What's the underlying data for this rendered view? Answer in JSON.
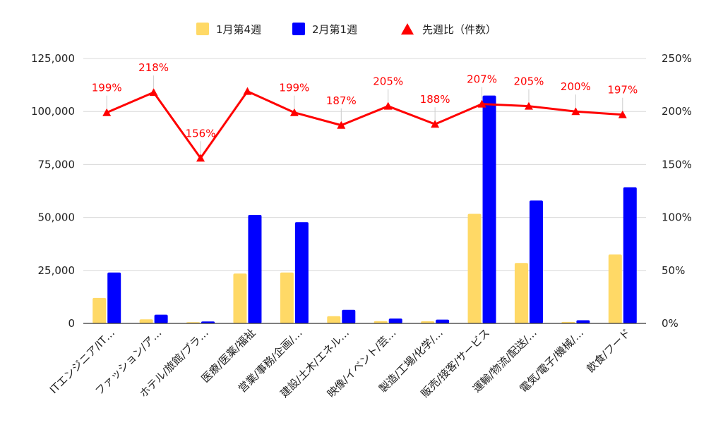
{
  "chart_data": {
    "type": "bar+line",
    "title": "",
    "legend": {
      "position": "top",
      "entries": [
        "1月第4週",
        "2月第1週",
        "先週比（件数）"
      ]
    },
    "categories": [
      "ITエンジニア/IT…",
      "ファッション/ア…",
      "ホテル/旅館/ブラ…",
      "医療/医薬/福祉",
      "営業/事務/企画/…",
      "建設/土木/エネル…",
      "映像/イベント/芸…",
      "製造/工場/化学/…",
      "販売/接客/サービス",
      "運輸/物流/配送/…",
      "電気/電子/機械/…",
      "飲食/フード"
    ],
    "series": [
      {
        "name": "1月第4週",
        "type": "bar",
        "axis": "left",
        "color": "#FFD966",
        "values": [
          12000,
          1900,
          600,
          23500,
          24000,
          3400,
          1100,
          1000,
          51700,
          28500,
          700,
          32500
        ]
      },
      {
        "name": "2月第1週",
        "type": "bar",
        "axis": "left",
        "color": "#0000FF",
        "values": [
          24000,
          4100,
          900,
          51200,
          47800,
          6400,
          2300,
          1800,
          107500,
          58000,
          1500,
          64200
        ]
      },
      {
        "name": "先週比（件数）",
        "type": "line",
        "axis": "right",
        "color": "#FF0000",
        "values": [
          199,
          218,
          156,
          219,
          199,
          187,
          205,
          188,
          207,
          205,
          200,
          197
        ],
        "labels": [
          "199%",
          "218%",
          "156%",
          "",
          "199%",
          "187%",
          "205%",
          "188%",
          "207%",
          "205%",
          "200%",
          "197%"
        ]
      }
    ],
    "y_left": {
      "min": 0,
      "max": 125000,
      "ticks": [
        "0",
        "25,000",
        "50,000",
        "75,000",
        "100,000",
        "125,000"
      ]
    },
    "y_right": {
      "min": 0,
      "max": 250,
      "ticks": [
        "0%",
        "50%",
        "100%",
        "150%",
        "200%",
        "250%"
      ]
    },
    "grid": true,
    "colors": {
      "grid": "#D9D9D9",
      "axis": "#333333",
      "text": "#222222"
    }
  }
}
